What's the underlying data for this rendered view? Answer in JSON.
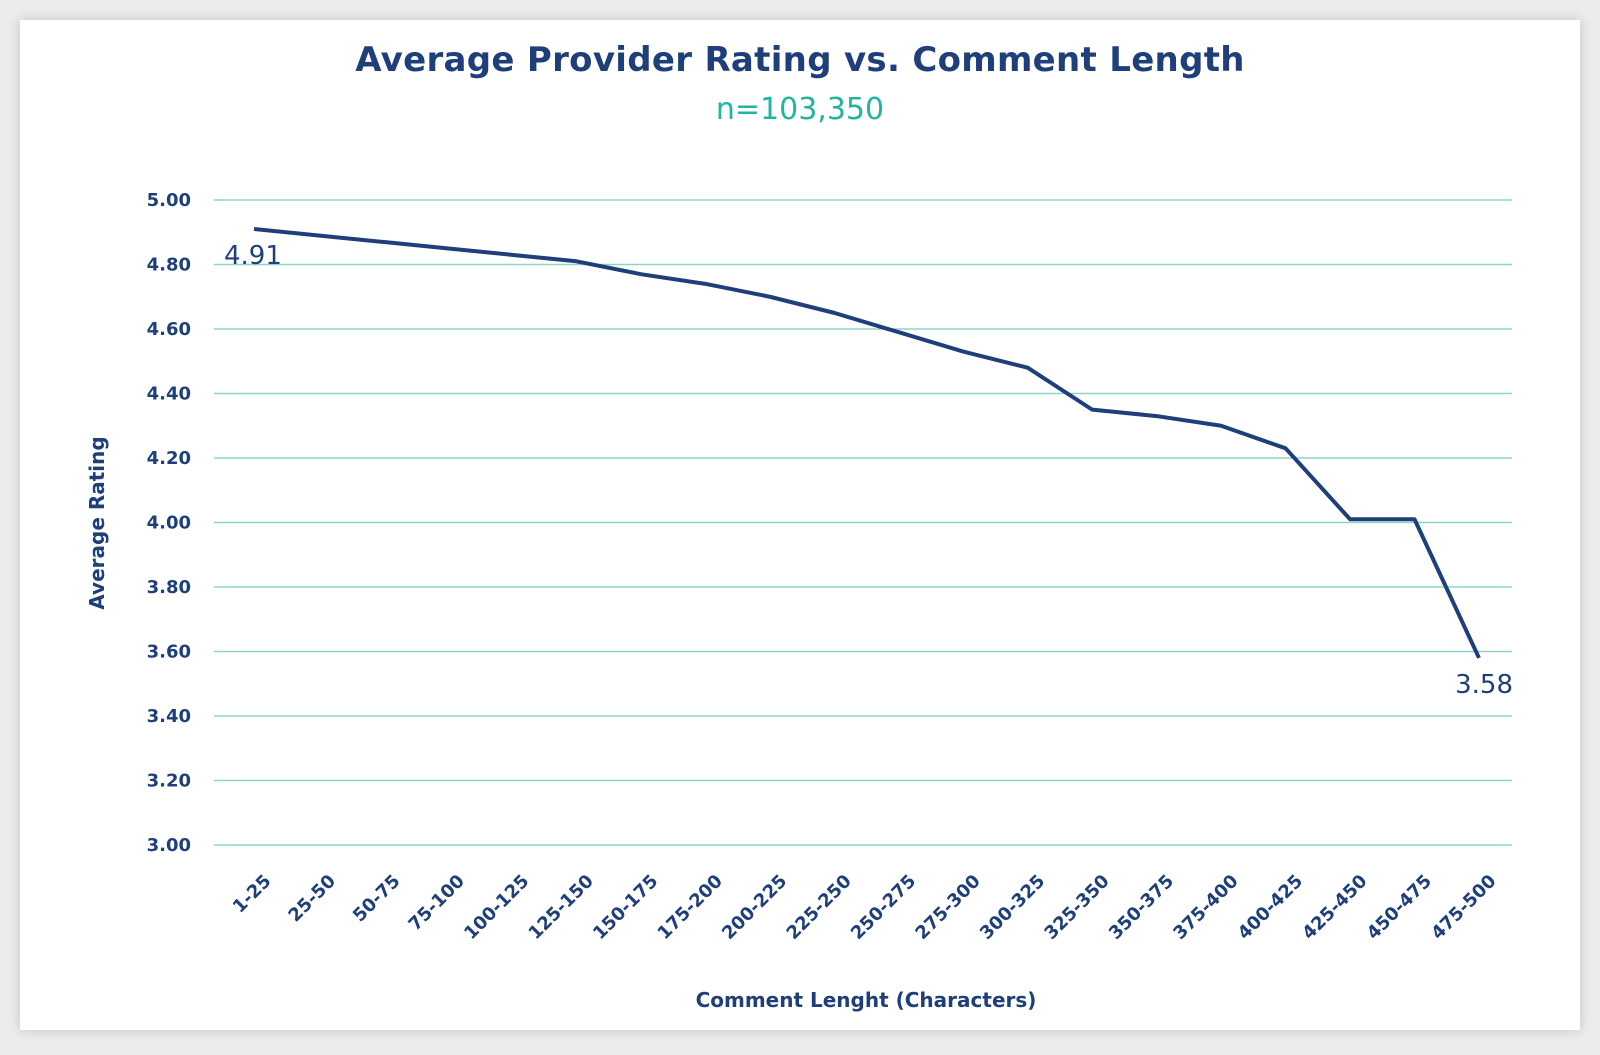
{
  "chart_data": {
    "type": "line",
    "title": "Average Provider Rating vs. Comment Length",
    "subtitle": "n=103,350",
    "xlabel": "Comment Lenght (Characters)",
    "ylabel": "Average Rating",
    "ylim": [
      3.0,
      5.0
    ],
    "yticks": [
      "5.00",
      "4.80",
      "4.60",
      "4.40",
      "4.20",
      "4.00",
      "3.80",
      "3.60",
      "3.40",
      "3.20",
      "3.00"
    ],
    "categories": [
      "1-25",
      "25-50",
      "50-75",
      "75-100",
      "100-125",
      "125-150",
      "150-175",
      "175-200",
      "200-225",
      "225-250",
      "250-275",
      "275-300",
      "300-325",
      "325-350",
      "350-375",
      "375-400",
      "400-425",
      "425-450",
      "450-475",
      "475-500"
    ],
    "series": [
      {
        "values": [
          4.91,
          4.89,
          4.87,
          4.85,
          4.83,
          4.81,
          4.77,
          4.74,
          4.7,
          4.65,
          4.59,
          4.53,
          4.48,
          4.35,
          4.33,
          4.3,
          4.23,
          4.01,
          4.01,
          3.58
        ]
      }
    ],
    "data_labels": [
      {
        "index": 0,
        "text": "4.91"
      },
      {
        "index": 19,
        "text": "3.58"
      }
    ],
    "grid": true,
    "legend": "none",
    "colors": {
      "line": "#1f3f7a",
      "grid": "#8fd3c8",
      "title": "#1f3f7a",
      "subtitle": "#1fb5a0"
    }
  }
}
